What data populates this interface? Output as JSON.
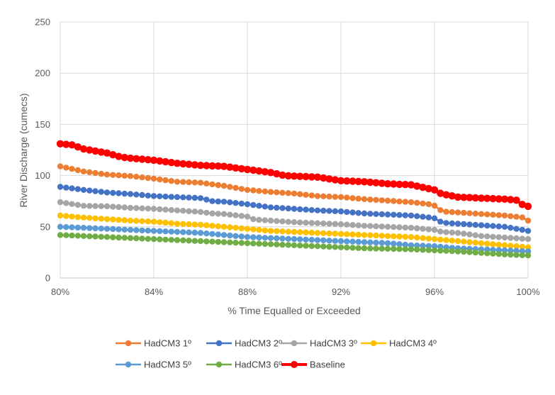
{
  "chart_data": {
    "type": "line",
    "title": "",
    "xlabel": "% Time Equalled or Exceeded",
    "ylabel": "River Discharge (cumecs)",
    "xlim": [
      80,
      100
    ],
    "ylim": [
      0,
      250
    ],
    "x_ticks": [
      80,
      84,
      88,
      92,
      96,
      100
    ],
    "x_tick_labels": [
      "80%",
      "84%",
      "88%",
      "92%",
      "96%",
      "100%"
    ],
    "y_ticks": [
      0,
      50,
      100,
      150,
      200,
      250
    ],
    "y_tick_labels": [
      "0",
      "50",
      "100",
      "150",
      "200",
      "250"
    ],
    "grid": true,
    "legend_position": "bottom",
    "series": [
      {
        "name": "HadCM3 1º",
        "color": "#ED7D31",
        "anchors": [
          [
            80,
            109
          ],
          [
            81,
            104
          ],
          [
            82,
            101
          ],
          [
            83,
            99.5
          ],
          [
            84,
            97
          ],
          [
            85,
            94
          ],
          [
            86,
            93
          ],
          [
            87,
            90
          ],
          [
            88,
            86
          ],
          [
            89,
            84
          ],
          [
            90,
            82.5
          ],
          [
            91,
            80
          ],
          [
            92,
            79
          ],
          [
            93,
            77
          ],
          [
            94,
            75.5
          ],
          [
            95,
            74
          ],
          [
            95.8,
            72
          ],
          [
            96.1,
            70
          ],
          [
            96.3,
            65
          ],
          [
            97,
            64
          ],
          [
            98,
            62.5
          ],
          [
            99,
            61
          ],
          [
            99.8,
            59
          ],
          [
            100,
            56
          ]
        ]
      },
      {
        "name": "HadCM3 2º",
        "color": "#4472C4",
        "anchors": [
          [
            80,
            89
          ],
          [
            81,
            86
          ],
          [
            82,
            83.5
          ],
          [
            83,
            82
          ],
          [
            84,
            80
          ],
          [
            85,
            79
          ],
          [
            86,
            78
          ],
          [
            86.5,
            75
          ],
          [
            87,
            74.5
          ],
          [
            88,
            72
          ],
          [
            89,
            69
          ],
          [
            90,
            67.5
          ],
          [
            91,
            66
          ],
          [
            92,
            65
          ],
          [
            93,
            63
          ],
          [
            94,
            62
          ],
          [
            95,
            61
          ],
          [
            95.8,
            59
          ],
          [
            96.1,
            58
          ],
          [
            96.3,
            54
          ],
          [
            97,
            53
          ],
          [
            98,
            51.5
          ],
          [
            99,
            50
          ],
          [
            100,
            46
          ]
        ]
      },
      {
        "name": "HadCM3 3º",
        "color": "#A5A5A5",
        "anchors": [
          [
            80,
            74
          ],
          [
            81,
            70.5
          ],
          [
            82,
            70
          ],
          [
            83,
            68.5
          ],
          [
            84,
            67.5
          ],
          [
            85,
            66
          ],
          [
            86,
            64.5
          ],
          [
            86.5,
            63
          ],
          [
            87,
            62.5
          ],
          [
            88,
            60
          ],
          [
            88.3,
            57
          ],
          [
            89,
            56
          ],
          [
            90,
            54.5
          ],
          [
            91,
            53.5
          ],
          [
            92,
            52.5
          ],
          [
            93,
            51
          ],
          [
            94,
            50
          ],
          [
            95,
            49
          ],
          [
            96,
            47
          ],
          [
            96.3,
            45
          ],
          [
            97,
            44
          ],
          [
            98,
            41
          ],
          [
            99,
            39.5
          ],
          [
            100,
            38
          ]
        ]
      },
      {
        "name": "HadCM3 4º",
        "color": "#FFC000",
        "anchors": [
          [
            80,
            61
          ],
          [
            81,
            59
          ],
          [
            82,
            57.5
          ],
          [
            83,
            56
          ],
          [
            84,
            55
          ],
          [
            85,
            53
          ],
          [
            86,
            52
          ],
          [
            87,
            50
          ],
          [
            88,
            48
          ],
          [
            89,
            46
          ],
          [
            90,
            45
          ],
          [
            91,
            44
          ],
          [
            92,
            43
          ],
          [
            93,
            42
          ],
          [
            94,
            41
          ],
          [
            95,
            40
          ],
          [
            96,
            38
          ],
          [
            97,
            36
          ],
          [
            98,
            34
          ],
          [
            99,
            32
          ],
          [
            100,
            30
          ]
        ]
      },
      {
        "name": "HadCM3 5º",
        "color": "#5B9BD5",
        "anchors": [
          [
            80,
            50
          ],
          [
            81,
            49
          ],
          [
            82,
            48
          ],
          [
            83,
            47
          ],
          [
            84,
            46
          ],
          [
            85,
            45
          ],
          [
            86,
            44
          ],
          [
            87,
            42
          ],
          [
            88,
            40
          ],
          [
            89,
            39
          ],
          [
            90,
            38
          ],
          [
            91,
            37
          ],
          [
            92,
            36
          ],
          [
            93,
            35
          ],
          [
            94,
            34
          ],
          [
            95,
            32
          ],
          [
            96,
            31
          ],
          [
            97,
            29
          ],
          [
            98,
            28
          ],
          [
            99,
            27
          ],
          [
            100,
            26
          ]
        ]
      },
      {
        "name": "HadCM3 6º",
        "color": "#70AD47",
        "anchors": [
          [
            80,
            42
          ],
          [
            81,
            41
          ],
          [
            82,
            40
          ],
          [
            83,
            39
          ],
          [
            84,
            38
          ],
          [
            85,
            37
          ],
          [
            86,
            36
          ],
          [
            87,
            35
          ],
          [
            88,
            34
          ],
          [
            89,
            33
          ],
          [
            90,
            32
          ],
          [
            91,
            31
          ],
          [
            92,
            30
          ],
          [
            93,
            29
          ],
          [
            94,
            28.5
          ],
          [
            95,
            28
          ],
          [
            96,
            27
          ],
          [
            97,
            26
          ],
          [
            98,
            24.5
          ],
          [
            99,
            23
          ],
          [
            100,
            22
          ]
        ]
      },
      {
        "name": "Baseline",
        "color": "#FF0000",
        "bold": true,
        "anchors": [
          [
            80,
            131
          ],
          [
            80.5,
            130
          ],
          [
            81,
            126
          ],
          [
            82,
            122
          ],
          [
            82.6,
            118
          ],
          [
            83,
            117
          ],
          [
            84,
            115
          ],
          [
            85,
            112
          ],
          [
            86,
            110
          ],
          [
            87,
            109
          ],
          [
            88,
            106
          ],
          [
            89,
            103
          ],
          [
            89.6,
            100
          ],
          [
            90,
            99.5
          ],
          [
            91,
            98.5
          ],
          [
            92,
            95
          ],
          [
            93,
            94
          ],
          [
            94,
            92
          ],
          [
            95,
            91
          ],
          [
            96,
            86
          ],
          [
            96.3,
            82
          ],
          [
            96.8,
            80
          ],
          [
            97,
            79
          ],
          [
            98,
            78
          ],
          [
            99,
            77
          ],
          [
            99.5,
            76
          ],
          [
            99.8,
            71
          ],
          [
            100,
            70
          ]
        ]
      }
    ]
  }
}
